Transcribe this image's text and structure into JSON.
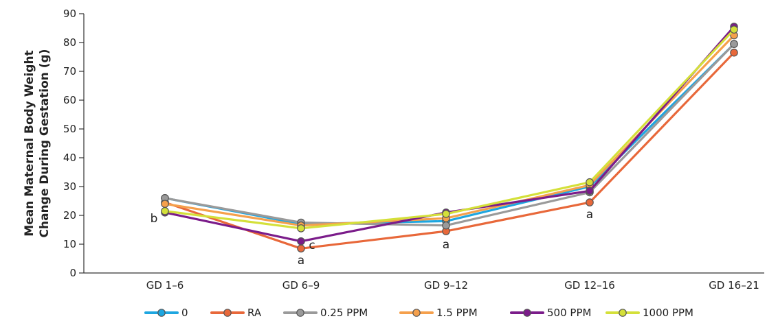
{
  "chart_data": {
    "type": "line",
    "ylabel_lines": [
      "Mean Maternal Body Weight",
      "Change During Gestation (g)"
    ],
    "xlabel": "",
    "ylim": [
      0,
      90
    ],
    "yticks": [
      0,
      10,
      20,
      30,
      40,
      50,
      60,
      70,
      80,
      90
    ],
    "categories": [
      "GD 1–6",
      "GD 6–9",
      "GD 9–12",
      "GD 12–16",
      "GD 16–21"
    ],
    "series": [
      {
        "name": "0",
        "color": "#1ea6e0",
        "values": [
          26.0,
          17.0,
          18.0,
          30.0,
          79.5
        ]
      },
      {
        "name": "RA",
        "color": "#e8683a",
        "values": [
          24.5,
          8.5,
          14.5,
          24.5,
          76.5
        ]
      },
      {
        "name": "0.25 PPM",
        "color": "#9a9a9a",
        "values": [
          26.0,
          17.5,
          16.5,
          28.0,
          79.5
        ]
      },
      {
        "name": "1.5 PPM",
        "color": "#f5a04c",
        "values": [
          24.0,
          16.5,
          19.0,
          30.5,
          82.5
        ]
      },
      {
        "name": "500 PPM",
        "color": "#7b1c8a",
        "values": [
          21.0,
          11.0,
          21.0,
          28.5,
          85.5
        ]
      },
      {
        "name": "1000 PPM",
        "color": "#d4e03a",
        "values": [
          21.5,
          15.5,
          20.5,
          31.5,
          84.5
        ]
      }
    ],
    "annotations": [
      {
        "text": "b",
        "category": "GD 1–6",
        "y": 18.8
      },
      {
        "text": "c",
        "category": "GD 6–9",
        "y": 9.5
      },
      {
        "text": "a",
        "category": "GD 6–9",
        "y": 4.5
      },
      {
        "text": "a",
        "category": "GD 9–12",
        "y": 10.0
      },
      {
        "text": "a",
        "category": "GD 12–16",
        "y": 20.5
      }
    ],
    "legend_position": "bottom",
    "grid": false
  }
}
